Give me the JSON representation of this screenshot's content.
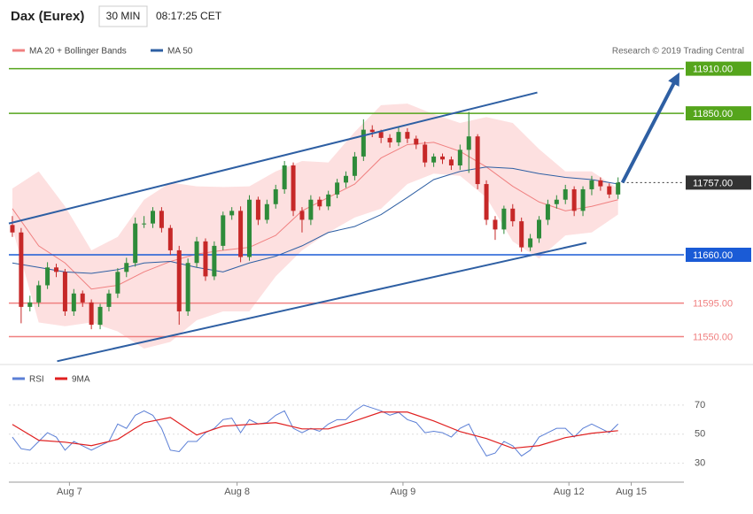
{
  "header": {
    "title": "Dax (Eurex)",
    "interval": "30 MIN",
    "time": "08:17:25 CET"
  },
  "copyright": "Research © 2019 Trading Central",
  "chart_data": [
    {
      "type": "candlestick",
      "xlim": [
        -0.4,
        76.5
      ],
      "ylim": [
        11515,
        11925
      ],
      "up_color": "#2e8b3a",
      "down_color": "#c62828",
      "open": [
        11700,
        11690,
        11590,
        11596,
        11619,
        11643,
        11637,
        11584,
        11608,
        11596,
        11566,
        11590,
        11608,
        11637,
        11649,
        11702,
        11702,
        11719,
        11696,
        11666,
        11584,
        11649,
        11678,
        11631,
        11672,
        11713,
        11719,
        11657,
        11734,
        11707,
        11728,
        11748,
        11780,
        11719,
        11707,
        11734,
        11725,
        11741,
        11757,
        11766,
        11792,
        11828,
        11825,
        11817,
        11811,
        11825,
        11816,
        11808,
        11784,
        11792,
        11788,
        11780,
        11801,
        11819,
        11755,
        11707,
        11694,
        11722,
        11705,
        11670,
        11682,
        11707,
        11728,
        11734,
        11748,
        11719,
        11748,
        11760,
        11752,
        11741
      ],
      "high": [
        11712,
        11696,
        11605,
        11625,
        11650,
        11648,
        11641,
        11614,
        11612,
        11600,
        11594,
        11613,
        11642,
        11656,
        11710,
        11712,
        11724,
        11724,
        11700,
        11672,
        11655,
        11684,
        11682,
        11678,
        11718,
        11724,
        11725,
        11740,
        11738,
        11734,
        11754,
        11786,
        11784,
        11724,
        11740,
        11738,
        11746,
        11762,
        11772,
        11798,
        11842,
        11834,
        11828,
        11822,
        11832,
        11830,
        11820,
        11812,
        11796,
        11796,
        11792,
        11808,
        11852,
        11822,
        11760,
        11712,
        11726,
        11728,
        11710,
        11688,
        11712,
        11734,
        11740,
        11754,
        11752,
        11752,
        11766,
        11764,
        11756,
        11764
      ],
      "low": [
        11684,
        11568,
        11584,
        11590,
        11614,
        11630,
        11578,
        11578,
        11590,
        11560,
        11560,
        11584,
        11602,
        11630,
        11644,
        11696,
        11696,
        11690,
        11660,
        11566,
        11578,
        11643,
        11625,
        11626,
        11666,
        11707,
        11650,
        11652,
        11700,
        11702,
        11722,
        11742,
        11712,
        11690,
        11700,
        11720,
        11720,
        11736,
        11750,
        11760,
        11786,
        11818,
        11810,
        11804,
        11806,
        11810,
        11802,
        11778,
        11778,
        11782,
        11774,
        11774,
        11770,
        11748,
        11700,
        11680,
        11688,
        11698,
        11664,
        11665,
        11676,
        11700,
        11722,
        11728,
        11712,
        11712,
        11740,
        11746,
        11736,
        11735
      ],
      "close": [
        11690,
        11590,
        11596,
        11619,
        11643,
        11637,
        11584,
        11608,
        11596,
        11566,
        11590,
        11608,
        11637,
        11649,
        11702,
        11702,
        11719,
        11696,
        11666,
        11584,
        11649,
        11678,
        11631,
        11672,
        11713,
        11719,
        11657,
        11734,
        11707,
        11728,
        11748,
        11780,
        11719,
        11707,
        11734,
        11725,
        11741,
        11757,
        11766,
        11792,
        11828,
        11825,
        11817,
        11811,
        11825,
        11816,
        11808,
        11784,
        11792,
        11788,
        11780,
        11801,
        11819,
        11755,
        11707,
        11694,
        11722,
        11705,
        11670,
        11682,
        11707,
        11728,
        11734,
        11748,
        11719,
        11748,
        11760,
        11752,
        11741,
        11757
      ],
      "bollinger": {
        "name": "MA 20 + Bollinger Bands",
        "color": "#f08080",
        "fill": "#fde0e0",
        "x": [
          0,
          3,
          6,
          9,
          12,
          15,
          18,
          21,
          24,
          27,
          30,
          33,
          36,
          39,
          42,
          45,
          48,
          51,
          54,
          57,
          60,
          63,
          66,
          69
        ],
        "upper": [
          11749,
          11772,
          11725,
          11666,
          11684,
          11734,
          11757,
          11752,
          11751,
          11752,
          11772,
          11786,
          11784,
          11825,
          11861,
          11863,
          11849,
          11837,
          11845,
          11837,
          11802,
          11772,
          11772,
          11749
        ],
        "middle": [
          11722,
          11672,
          11649,
          11614,
          11619,
          11637,
          11651,
          11661,
          11666,
          11670,
          11686,
          11719,
          11737,
          11755,
          11790,
          11808,
          11811,
          11799,
          11778,
          11752,
          11731,
          11719,
          11725,
          11734
        ],
        "lower": [
          11696,
          11569,
          11564,
          11569,
          11557,
          11534,
          11543,
          11572,
          11584,
          11584,
          11631,
          11666,
          11690,
          11710,
          11722,
          11755,
          11769,
          11766,
          11737,
          11678,
          11655,
          11686,
          11690,
          11714
        ]
      },
      "ma50": {
        "name": "MA 50",
        "color": "#2e5fa3",
        "x": [
          0,
          3,
          6,
          9,
          12,
          15,
          18,
          21,
          24,
          27,
          30,
          33,
          36,
          39,
          42,
          45,
          48,
          51,
          54,
          57,
          60,
          63,
          66,
          69
        ],
        "values": [
          11649,
          11643,
          11637,
          11635,
          11640,
          11649,
          11651,
          11643,
          11637,
          11649,
          11658,
          11672,
          11690,
          11698,
          11714,
          11737,
          11761,
          11772,
          11778,
          11776,
          11769,
          11764,
          11761,
          11755
        ]
      },
      "trendlines": [
        {
          "x": [
            -0.4,
            59.8
          ],
          "y": [
            11702,
            11878
          ],
          "color": "#2e5fa3"
        },
        {
          "x": [
            5.1,
            65.4
          ],
          "y": [
            11517,
            11676
          ],
          "color": "#2e5fa3"
        }
      ],
      "forecast": {
        "x": [
          69.5,
          76
        ],
        "y": [
          11757,
          11905
        ],
        "color": "#2e5fa3"
      },
      "levels": [
        {
          "value": 11910,
          "label": "11910.00",
          "color": "#55a51c",
          "box": true,
          "style": "solid"
        },
        {
          "value": 11850,
          "label": "11850.00",
          "color": "#55a51c",
          "box": true,
          "style": "solid"
        },
        {
          "value": 11757,
          "label": "11757.00",
          "color": "#333333",
          "box": true,
          "style": "dotted"
        },
        {
          "value": 11660,
          "label": "11660.00",
          "color": "#1a5bd6",
          "box": true,
          "style": "solid"
        },
        {
          "value": 11595,
          "label": "11595.00",
          "color": "#f08080",
          "box": false,
          "style": "solid"
        },
        {
          "value": 11550,
          "label": "11550.00",
          "color": "#f08080",
          "box": false,
          "style": "solid"
        }
      ]
    },
    {
      "type": "line",
      "xlim": [
        -0.4,
        76.5
      ],
      "ylim": [
        17,
        90
      ],
      "yticks": [
        30,
        50,
        70
      ],
      "xticks": [
        {
          "value": 6.5,
          "label": "Aug 7"
        },
        {
          "value": 25.6,
          "label": "Aug 8"
        },
        {
          "value": 44.5,
          "label": "Aug 9"
        },
        {
          "value": 63.4,
          "label": "Aug 12"
        },
        {
          "value": 70.5,
          "label": "Aug 15"
        }
      ],
      "series": [
        {
          "name": "RSI",
          "color": "#5b7fd6",
          "values": [
            48,
            40,
            39,
            45,
            51,
            48,
            39,
            45,
            42,
            39,
            42,
            45,
            57,
            54,
            63,
            66,
            63,
            54,
            39,
            38,
            45,
            45,
            51,
            54,
            60,
            61,
            51,
            60,
            57,
            58,
            63,
            66,
            54,
            51,
            54,
            52,
            57,
            60,
            60,
            66,
            70,
            68,
            66,
            63,
            65,
            60,
            58,
            51,
            52,
            51,
            48,
            54,
            57,
            45,
            35,
            37,
            45,
            42,
            35,
            39,
            48,
            51,
            54,
            54,
            48,
            54,
            57,
            54,
            51,
            57
          ]
        },
        {
          "name": "9MA",
          "color": "#e02020",
          "x": [
            0,
            3,
            6,
            9,
            12,
            15,
            18,
            21,
            24,
            27,
            30,
            33,
            36,
            39,
            42,
            45,
            48,
            51,
            54,
            57,
            60,
            63,
            66,
            69
          ],
          "values": [
            56.7,
            45.8,
            44.5,
            42.1,
            46.4,
            57.9,
            61.5,
            49.4,
            55.5,
            56.7,
            57.9,
            53.6,
            53.6,
            59.1,
            65.2,
            65.2,
            59.1,
            51.8,
            47,
            40.3,
            42.1,
            47.6,
            50.6,
            52.4
          ]
        }
      ]
    }
  ]
}
